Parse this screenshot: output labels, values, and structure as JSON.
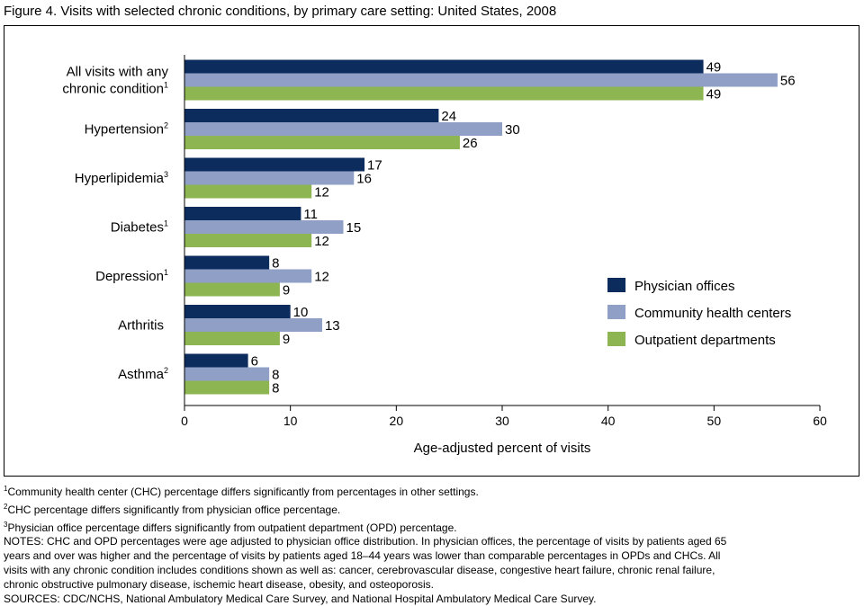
{
  "title": "Figure 4. Visits with selected chronic conditions, by primary care setting: United States, 2008",
  "chart_data": {
    "type": "bar",
    "orientation": "horizontal",
    "title": "Figure 4. Visits with selected chronic conditions, by primary care setting: United States, 2008",
    "xlabel": "Age-adjusted percent of visits",
    "ylabel": "",
    "xlim": [
      0,
      60
    ],
    "xticks": [
      0,
      10,
      20,
      30,
      40,
      50,
      60
    ],
    "grid": false,
    "legend_position": "right",
    "categories": [
      {
        "lines": [
          "All visits with any",
          "chronic condition"
        ],
        "sup": "1"
      },
      {
        "lines": [
          "Hypertension"
        ],
        "sup": "2"
      },
      {
        "lines": [
          "Hyperlipidemia"
        ],
        "sup": "3"
      },
      {
        "lines": [
          "Diabetes"
        ],
        "sup": "1"
      },
      {
        "lines": [
          "Depression"
        ],
        "sup": "1"
      },
      {
        "lines": [
          "Arthritis"
        ],
        "sup": ""
      },
      {
        "lines": [
          "Asthma"
        ],
        "sup": "2"
      }
    ],
    "series": [
      {
        "name": "Physician offices",
        "color": "#0d2c5e",
        "values": [
          49,
          24,
          17,
          11,
          8,
          10,
          6
        ]
      },
      {
        "name": "Community health centers",
        "color": "#8f9fc6",
        "values": [
          56,
          30,
          16,
          15,
          12,
          13,
          8
        ]
      },
      {
        "name": "Outpatient departments",
        "color": "#8db551",
        "values": [
          49,
          26,
          12,
          12,
          9,
          9,
          8
        ]
      }
    ]
  },
  "notes": [
    {
      "sup": "1",
      "text": "Community health center (CHC) percentage differs significantly from percentages in other settings."
    },
    {
      "sup": "2",
      "text": "CHC percentage differs significantly from physician office percentage."
    },
    {
      "sup": "3",
      "text": "Physician office percentage differs significantly from outpatient department (OPD) percentage."
    },
    {
      "sup": "",
      "text": "NOTES: CHC and OPD percentages were age adjusted to  physician office distribution. In physician offices, the percentage of visits by patients aged 65"
    },
    {
      "sup": "",
      "text": "years and over was higher and the percentage of visits by patients aged 18–44 years was lower than comparable percentages in OPDs and CHCs.  All"
    },
    {
      "sup": "",
      "text": "visits with any chronic condition includes conditions shown as well as: cancer, cerebrovascular disease, congestive heart failure, chronic renal failure,"
    },
    {
      "sup": "",
      "text": "chronic obstructive pulmonary disease, ischemic heart disease, obesity, and osteoporosis."
    },
    {
      "sup": "",
      "text": "SOURCES: CDC/NCHS, National Ambulatory Medical Care Survey, and National Hospital Ambulatory Medical Care Survey."
    }
  ]
}
